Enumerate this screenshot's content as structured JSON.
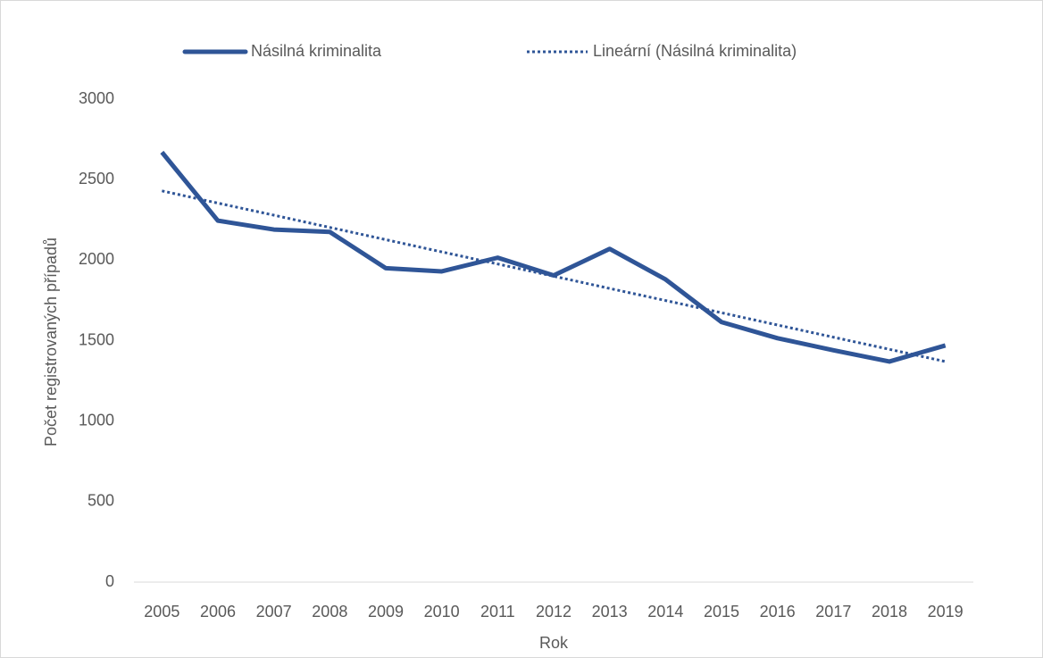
{
  "chart_data": {
    "type": "line",
    "x_label": "Rok",
    "y_label": "Počet registrovaných případů",
    "categories": [
      "2005",
      "2006",
      "2007",
      "2008",
      "2009",
      "2010",
      "2011",
      "2012",
      "2013",
      "2014",
      "2015",
      "2016",
      "2017",
      "2018",
      "2019"
    ],
    "series": [
      {
        "name": "Násilná kriminalita",
        "color": "#2f5597",
        "style": "solid",
        "values": [
          2670,
          2245,
          2190,
          2175,
          1950,
          1930,
          2015,
          1905,
          2070,
          1880,
          1615,
          1515,
          1440,
          1370,
          1470
        ]
      },
      {
        "name": "Lineární (Násilná kriminalita)",
        "color": "#2f5597",
        "style": "dotted",
        "values": [
          2430,
          2354,
          2279,
          2203,
          2127,
          2051,
          1976,
          1900,
          1824,
          1749,
          1673,
          1597,
          1521,
          1446,
          1370
        ]
      }
    ],
    "ylim": [
      0,
      3000
    ],
    "yticks": [
      0,
      500,
      1000,
      1500,
      2000,
      2500,
      3000
    ],
    "grid": false,
    "legend": "top"
  }
}
